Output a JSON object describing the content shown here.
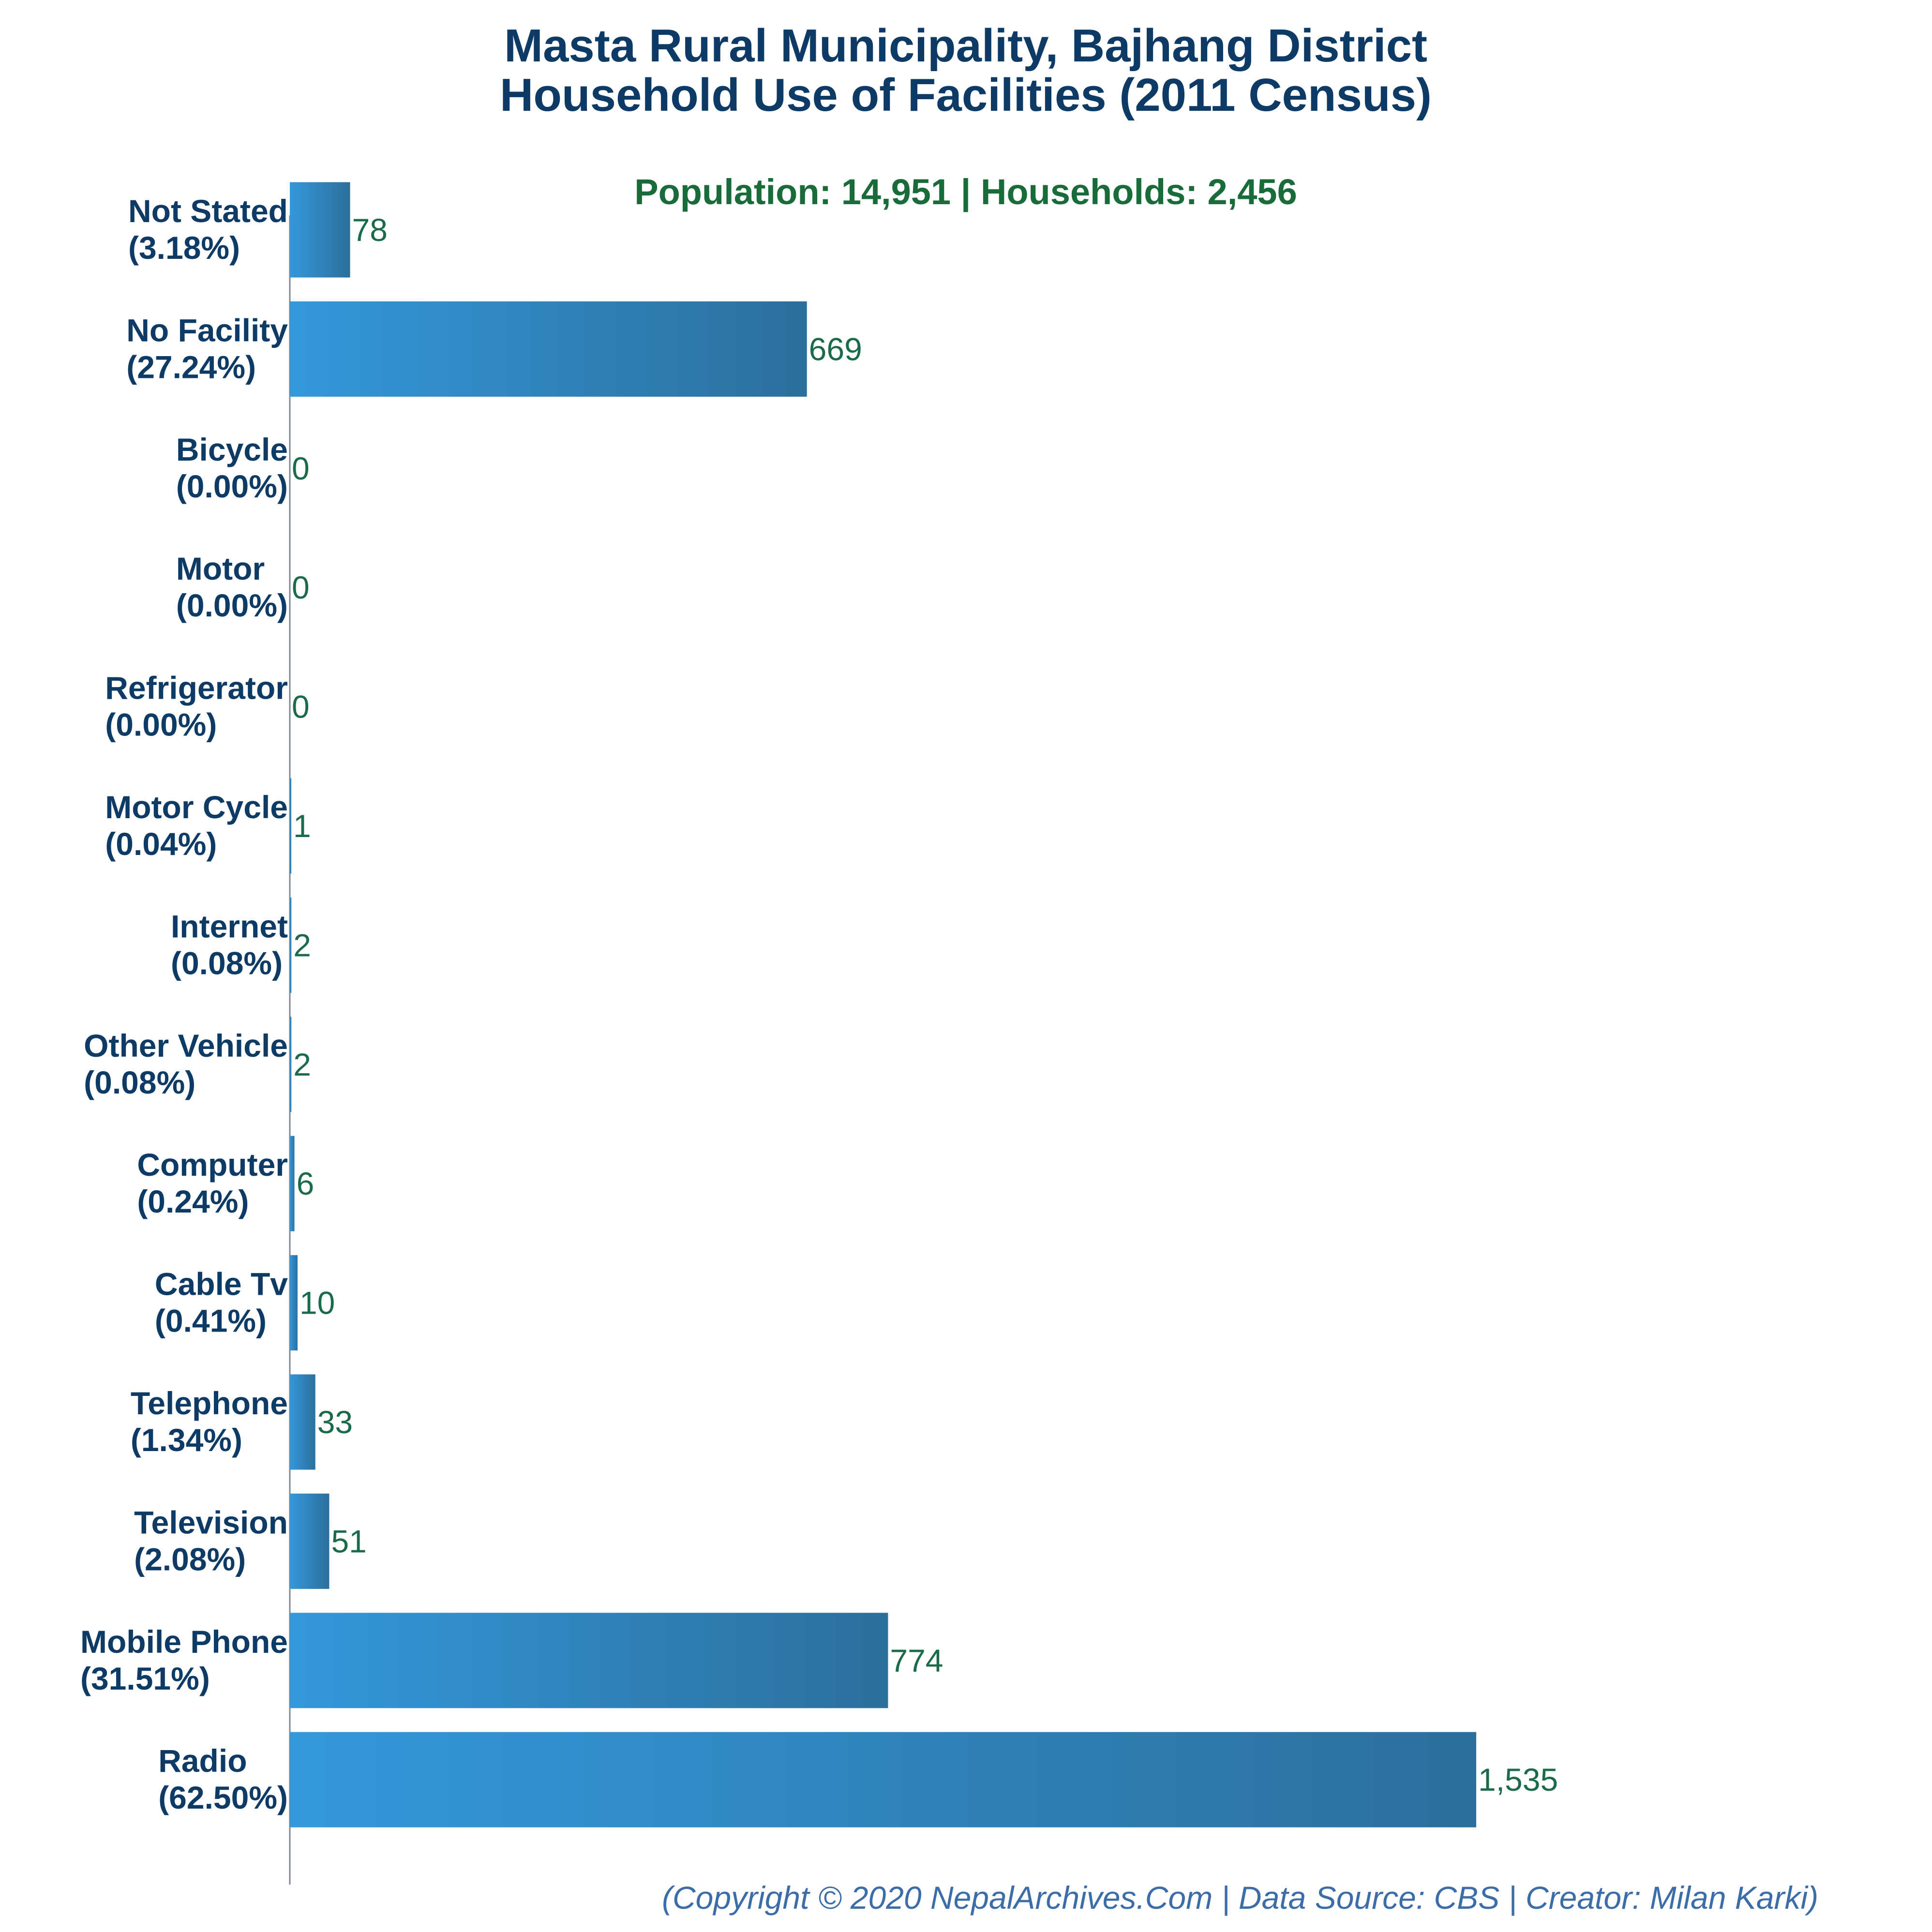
{
  "chart_data": {
    "type": "bar",
    "orientation": "horizontal",
    "title_line1": "Masta Rural Municipality, Bajhang District",
    "title_line2": "Household Use of Facilities (2011 Census)",
    "subtitle": "Population: 14,951 | Households: 2,456",
    "categories": [
      "Not Stated",
      "No Facility",
      "Bicycle",
      "Motor",
      "Refrigerator",
      "Motor Cycle",
      "Internet",
      "Other Vehicle",
      "Computer",
      "Cable Tv",
      "Telephone",
      "Television",
      "Mobile Phone",
      "Radio"
    ],
    "percent_labels": [
      "(3.18%)",
      "(27.24%)",
      "(0.00%)",
      "(0.00%)",
      "(0.00%)",
      "(0.04%)",
      "(0.08%)",
      "(0.08%)",
      "(0.24%)",
      "(0.41%)",
      "(1.34%)",
      "(2.08%)",
      "(31.51%)",
      "(62.50%)"
    ],
    "values": [
      78,
      669,
      0,
      0,
      0,
      1,
      2,
      2,
      6,
      10,
      33,
      51,
      774,
      1535
    ],
    "value_labels": [
      "78",
      "669",
      "0",
      "0",
      "0",
      "1",
      "2",
      "2",
      "6",
      "10",
      "33",
      "51",
      "774",
      "1,535"
    ],
    "xlim": [
      0,
      1535
    ],
    "grid": false,
    "legend": "none",
    "colors": {
      "bar_start": "#3498db",
      "bar_end": "#2c6f9c",
      "title": "#0d3b66",
      "subtitle": "#1a6b3a",
      "value_label": "#1a6b4a",
      "footer": "#3b6ea8"
    }
  },
  "footer": "(Copyright © 2020 NepalArchives.Com | Data Source: CBS | Creator: Milan Karki)"
}
